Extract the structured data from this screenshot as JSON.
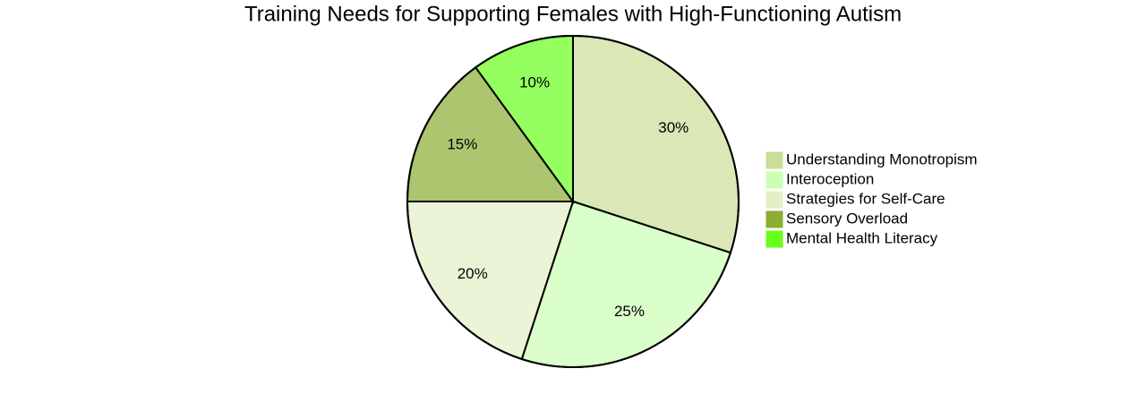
{
  "chart_data": {
    "type": "pie",
    "title": "Training Needs for Supporting Females with High-Functioning Autism",
    "categories": [
      "Understanding Monotropism",
      "Interoception",
      "Strategies for Self-Care",
      "Sensory Overload",
      "Mental Health Literacy"
    ],
    "values": [
      30,
      25,
      20,
      15,
      10
    ],
    "value_labels": [
      "30%",
      "25%",
      "20%",
      "15%",
      "10%"
    ],
    "colors": [
      "#c9de96",
      "#ccffb3",
      "#e3efc4",
      "#8aad32",
      "#66ff1a"
    ],
    "legend": "right"
  }
}
